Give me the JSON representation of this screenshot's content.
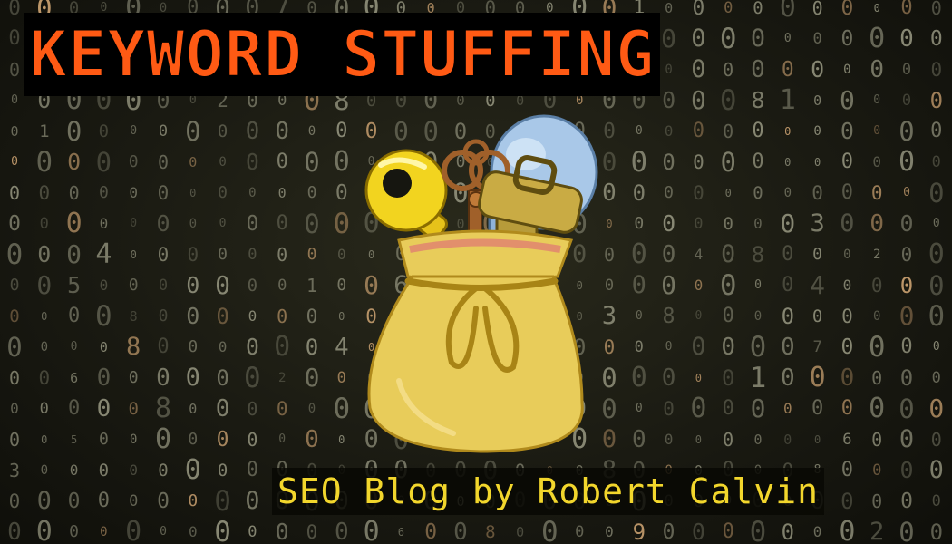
{
  "banner": {
    "title": "KEYWORD STUFFING",
    "subtitle": "SEO Blog by Robert Calvin"
  },
  "illustration": {
    "icons": [
      "gold-key-icon",
      "ornate-key-icon",
      "brass-key-icon",
      "blue-key-icon",
      "sack-icon"
    ]
  },
  "colors": {
    "title_text": "#ff5a14",
    "title_background": "#000000",
    "subtitle_text": "#f2d62c",
    "background": "#1a1a12",
    "digits": "#8f8f7a",
    "sack": "#e8cc5a"
  }
}
